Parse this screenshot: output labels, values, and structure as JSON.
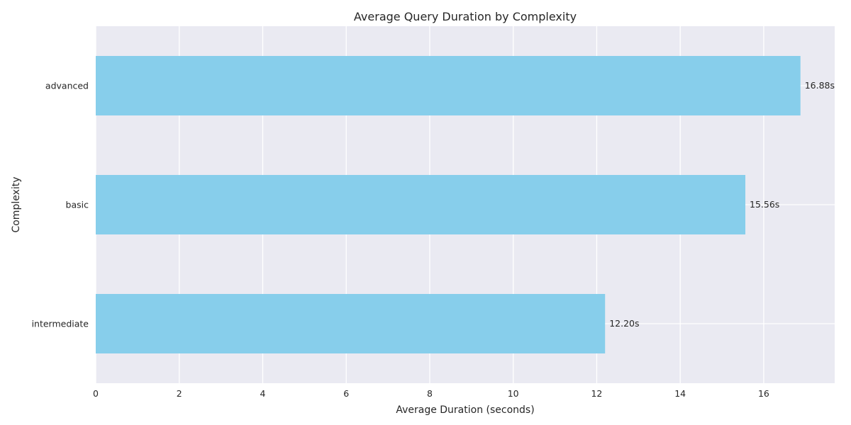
{
  "chart_data": {
    "type": "bar",
    "orientation": "horizontal",
    "title": "Average Query Duration by Complexity",
    "xlabel": "Average Duration (seconds)",
    "ylabel": "Complexity",
    "categories": [
      "advanced",
      "basic",
      "intermediate"
    ],
    "values": [
      16.88,
      15.56,
      12.2
    ],
    "data_labels": [
      "16.88s",
      "15.56s",
      "12.20s"
    ],
    "xlim": [
      0,
      17.7
    ],
    "xticks": [
      0,
      2,
      4,
      6,
      8,
      10,
      12,
      14,
      16
    ],
    "grid": true,
    "bar_color": "#87ceeb",
    "background_color": "#eaeaf2"
  }
}
